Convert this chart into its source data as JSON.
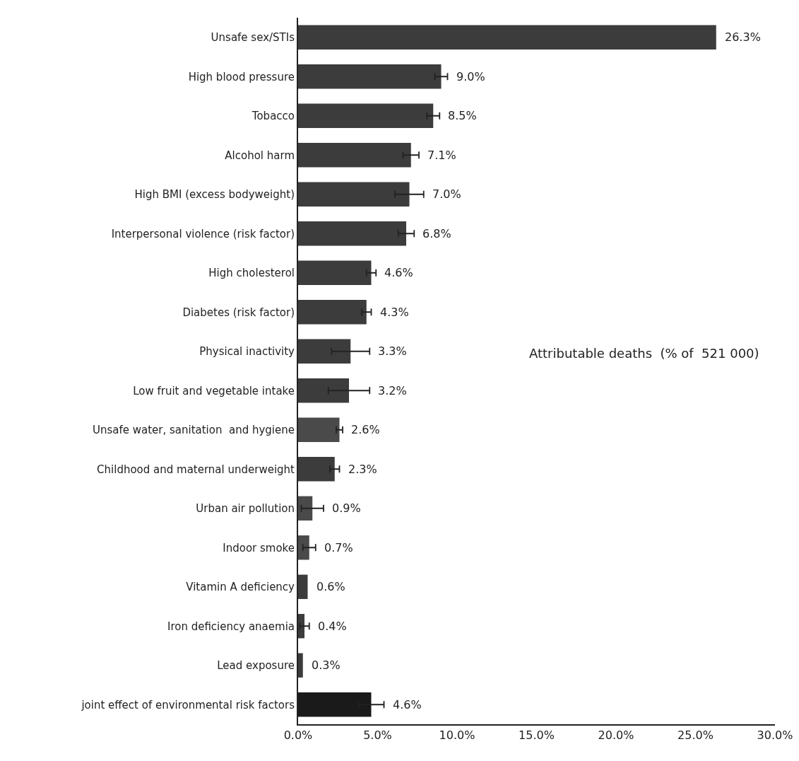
{
  "chart_data": {
    "type": "bar",
    "orientation": "horizontal",
    "categories": [
      "Unsafe sex/STIs",
      "High blood pressure",
      "Tobacco",
      "Alcohol harm",
      "High BMI (excess bodyweight)",
      "Interpersonal violence (risk factor)",
      "High cholesterol",
      "Diabetes (risk factor)",
      "Physical inactivity",
      "Low fruit and vegetable intake",
      "Unsafe water, sanitation  and hygiene",
      "Childhood and maternal underweight",
      "Urban air pollution",
      "Indoor smoke",
      "Vitamin A deficiency",
      "Iron deficiency anaemia",
      "Lead exposure",
      "joint effect of environmental risk factors"
    ],
    "values": [
      26.3,
      9.0,
      8.5,
      7.1,
      7.0,
      6.8,
      4.6,
      4.3,
      3.3,
      3.2,
      2.6,
      2.3,
      0.9,
      0.7,
      0.6,
      0.4,
      0.3,
      4.6
    ],
    "value_labels": [
      "26.3%",
      "9.0%",
      "8.5%",
      "7.1%",
      "7.0%",
      "6.8%",
      "4.6%",
      "4.3%",
      "3.3%",
      "3.2%",
      "2.6%",
      "2.3%",
      "0.9%",
      "0.7%",
      "0.6%",
      "0.4%",
      "0.3%",
      "4.6%"
    ],
    "errors": [
      null,
      0.4,
      0.4,
      0.5,
      0.9,
      0.5,
      0.3,
      0.3,
      1.2,
      1.3,
      0.2,
      0.3,
      0.7,
      0.4,
      null,
      0.3,
      null,
      0.8
    ],
    "colors": [
      "#3c3c3c",
      "#3c3c3c",
      "#3c3c3c",
      "#3c3c3c",
      "#3c3c3c",
      "#3c3c3c",
      "#3c3c3c",
      "#3c3c3c",
      "#3c3c3c",
      "#3c3c3c",
      "#4a4a4a",
      "#3c3c3c",
      "#4a4a4a",
      "#4a4a4a",
      "#3c3c3c",
      "#3c3c3c",
      "#3c3c3c",
      "#1a1a1a"
    ],
    "xlim": [
      0,
      30
    ],
    "xticks": [
      {
        "value": 0,
        "label": "0.0%"
      },
      {
        "value": 5,
        "label": "5.0%"
      },
      {
        "value": 10,
        "label": "10.0%"
      },
      {
        "value": 15,
        "label": "15.0%"
      },
      {
        "value": 20,
        "label": "20.0%"
      },
      {
        "value": 25,
        "label": "25.0%"
      },
      {
        "value": 30,
        "label": "30.0%"
      }
    ],
    "annotations": [
      "Attributable deaths  (% of  521 000)"
    ],
    "grid": false
  }
}
